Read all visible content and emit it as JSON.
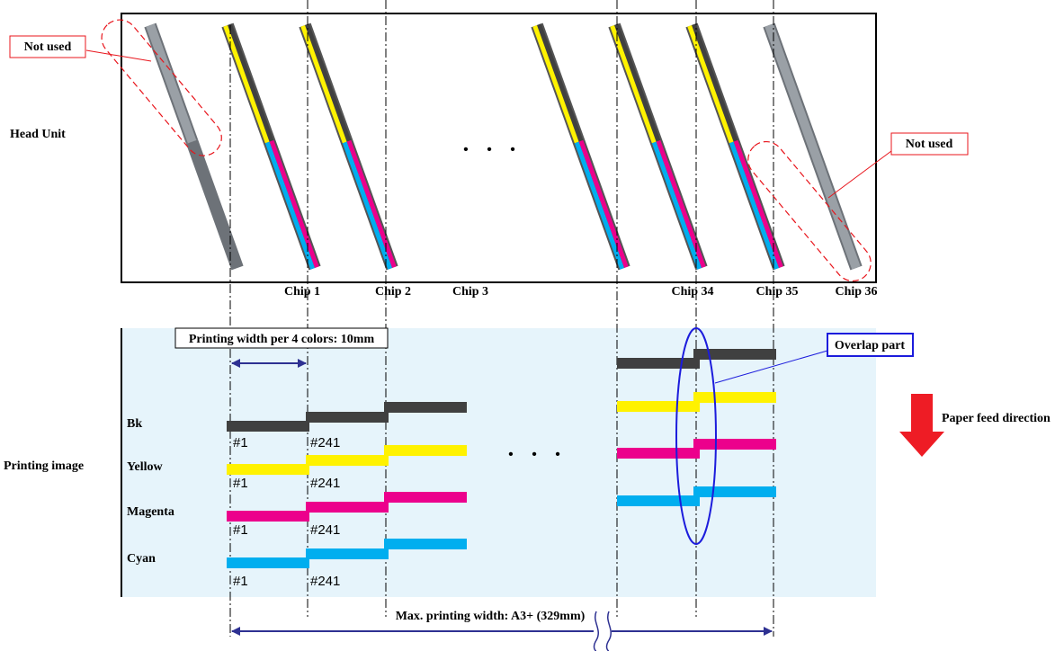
{
  "head_unit": {
    "title": "Head Unit",
    "not_used_left": "Not used",
    "not_used_right": "Not used",
    "ellipsis": "• • •",
    "chips": [
      "Chip 1",
      "Chip 2",
      "Chip 3",
      "Chip 34",
      "Chip 35",
      "Chip 36"
    ]
  },
  "printing_image": {
    "title": "Printing image",
    "width_label": "Printing width per 4 colors: 10mm",
    "overlap_label": "Overlap part",
    "ellipsis": "• • •",
    "colors": [
      {
        "name": "Bk",
        "hex": "#404040",
        "n1": "#1",
        "n2": "#241"
      },
      {
        "name": "Yellow",
        "hex": "#fff200",
        "n1": "#1",
        "n2": "#241"
      },
      {
        "name": "Magenta",
        "hex": "#ec008c",
        "n1": "#1",
        "n2": "#241"
      },
      {
        "name": "Cyan",
        "hex": "#00aeef",
        "n1": "#1",
        "n2": "#241"
      }
    ],
    "paper_feed": "Paper feed direction",
    "max_width": "Max. printing width: A3+ (329mm)"
  },
  "colors": {
    "annotation_red": "#e8141b",
    "annotation_blue": "#1c1cdc",
    "dimension_navy": "#2e3192",
    "print_area_bg": "#e6f4fb",
    "unused_chip": "#9aa0a6",
    "arrow_red": "#ee1c25"
  }
}
